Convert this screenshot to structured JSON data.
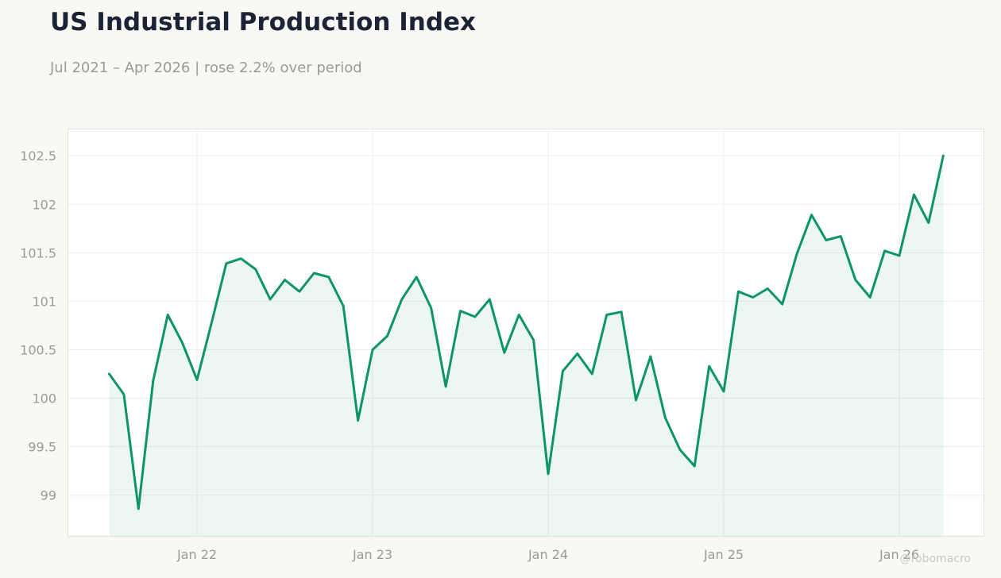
{
  "title": "US Industrial Production Index",
  "subtitle": "Jul 2021 – Apr 2026 | rose 2.2% over period",
  "watermark": "@robomacro",
  "colors": {
    "line": "#0d9467",
    "fill": "#0d9467",
    "background": "#f9f8f4",
    "plot_background": "#ffffff",
    "title": "#1b2336",
    "muted": "#9a9a96"
  },
  "chart_data": {
    "type": "area",
    "title": "US Industrial Production Index",
    "subtitle": "Jul 2021 – Apr 2026 | rose 2.2% over period",
    "xlabel": "",
    "ylabel": "",
    "ylim": [
      98.58,
      102.78
    ],
    "grid": true,
    "x_ticks": [
      {
        "date": "2022-01",
        "label": "Jan 22"
      },
      {
        "date": "2023-01",
        "label": "Jan 23"
      },
      {
        "date": "2024-01",
        "label": "Jan 24"
      },
      {
        "date": "2025-01",
        "label": "Jan 25"
      },
      {
        "date": "2026-01",
        "label": "Jan 26"
      }
    ],
    "y_ticks": [
      {
        "value": 99,
        "label": "99"
      },
      {
        "value": 99.5,
        "label": "99.5"
      },
      {
        "value": 100,
        "label": "100"
      },
      {
        "value": 100.5,
        "label": "100.5"
      },
      {
        "value": 101,
        "label": "101"
      },
      {
        "value": 101.5,
        "label": "101.5"
      },
      {
        "value": 102,
        "label": "102"
      },
      {
        "value": 102.5,
        "label": "102.5"
      }
    ],
    "x": [
      "2021-07",
      "2021-08",
      "2021-09",
      "2021-10",
      "2021-11",
      "2021-12",
      "2022-01",
      "2022-02",
      "2022-03",
      "2022-04",
      "2022-05",
      "2022-06",
      "2022-07",
      "2022-08",
      "2022-09",
      "2022-10",
      "2022-11",
      "2022-12",
      "2023-01",
      "2023-02",
      "2023-03",
      "2023-04",
      "2023-05",
      "2023-06",
      "2023-07",
      "2023-08",
      "2023-09",
      "2023-10",
      "2023-11",
      "2023-12",
      "2024-01",
      "2024-02",
      "2024-03",
      "2024-04",
      "2024-05",
      "2024-06",
      "2024-07",
      "2024-08",
      "2024-09",
      "2024-10",
      "2024-11",
      "2024-12",
      "2025-01",
      "2025-02",
      "2025-03",
      "2025-04",
      "2025-05",
      "2025-06",
      "2025-07",
      "2025-08",
      "2025-09",
      "2025-10",
      "2025-11",
      "2025-12",
      "2026-01",
      "2026-02",
      "2026-03",
      "2026-04"
    ],
    "series": [
      {
        "values": [
          100.25,
          100.04,
          98.86,
          100.18,
          100.86,
          100.57,
          100.19,
          100.78,
          101.39,
          101.44,
          101.33,
          101.02,
          101.22,
          101.1,
          101.29,
          101.25,
          100.95,
          99.77,
          100.5,
          100.64,
          101.02,
          101.25,
          100.93,
          100.12,
          100.9,
          100.84,
          101.02,
          100.47,
          100.86,
          100.6,
          99.22,
          100.28,
          100.46,
          100.25,
          100.86,
          100.89,
          99.98,
          100.43,
          99.8,
          99.47,
          99.3,
          100.33,
          100.07,
          101.1,
          101.04,
          101.13,
          100.97,
          101.49,
          101.89,
          101.63,
          101.67,
          101.22,
          101.04,
          101.52,
          101.47,
          102.1,
          101.81,
          102.5
        ]
      }
    ]
  }
}
